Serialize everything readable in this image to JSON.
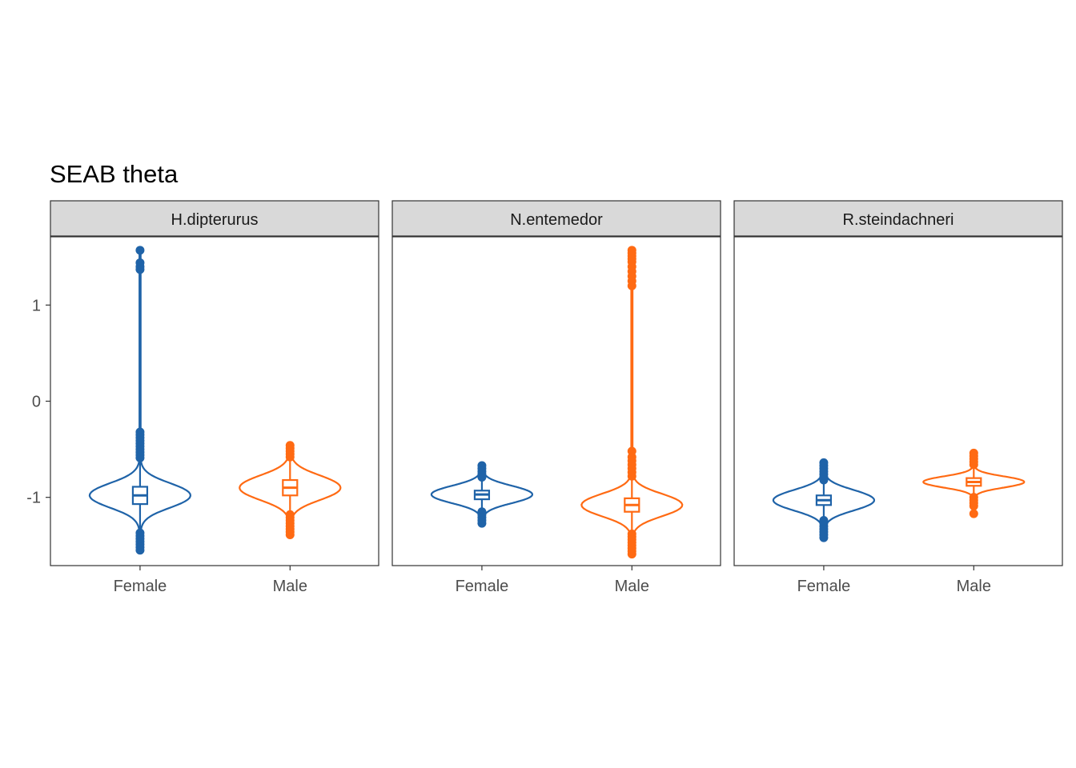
{
  "chart_data": {
    "type": "violin",
    "title": "SEAB theta",
    "xlabel": "",
    "ylabel": "",
    "ylim": [
      -1.71,
      1.71
    ],
    "y_ticks": [
      1,
      0,
      -1
    ],
    "y_tick_labels": [
      "1",
      "0",
      "-1"
    ],
    "categories": [
      "Female",
      "Male"
    ],
    "colors": {
      "Female": "#1f63a8",
      "Male": "#ff6a13"
    },
    "grid": false,
    "legend": "none",
    "panels": [
      {
        "label": "H.dipterurus",
        "groups": [
          {
            "name": "Female",
            "median": -0.98,
            "q1": -1.07,
            "q3": -0.89,
            "whisker_low": -1.34,
            "whisker_high": -0.62,
            "min": -1.55,
            "max": 1.57,
            "sd": 0.12,
            "outliers": [
              1.57,
              1.44,
              1.4,
              1.37,
              -0.32,
              -0.35,
              -0.38,
              -0.41,
              -0.44,
              -0.47,
              -0.5,
              -0.53,
              -0.56,
              -0.59,
              -1.37,
              -1.4,
              -1.43,
              -1.46,
              -1.49,
              -1.52,
              -1.55
            ]
          },
          {
            "name": "Male",
            "median": -0.9,
            "q1": -0.98,
            "q3": -0.82,
            "whisker_low": -1.15,
            "whisker_high": -0.6,
            "min": -1.39,
            "max": -0.46,
            "sd": 0.12,
            "outliers": [
              -0.46,
              -0.49,
              -0.52,
              -0.55,
              -0.58,
              -1.18,
              -1.21,
              -1.24,
              -1.27,
              -1.3,
              -1.33,
              -1.36,
              -1.39
            ]
          }
        ]
      },
      {
        "label": "N.entemedor",
        "groups": [
          {
            "name": "Female",
            "median": -0.97,
            "q1": -1.02,
            "q3": -0.93,
            "whisker_low": -1.13,
            "whisker_high": -0.8,
            "min": -1.27,
            "max": -0.67,
            "sd": 0.085,
            "outliers": [
              -0.67,
              -0.7,
              -0.73,
              -0.76,
              -0.79,
              -1.15,
              -1.18,
              -1.21,
              -1.24,
              -1.27
            ]
          },
          {
            "name": "Male",
            "median": -1.08,
            "q1": -1.15,
            "q3": -1.01,
            "whisker_low": -1.35,
            "whisker_high": -0.8,
            "min": -1.59,
            "max": 1.57,
            "sd": 0.11,
            "outliers": [
              1.57,
              1.54,
              1.51,
              1.48,
              1.45,
              1.4,
              1.35,
              1.3,
              1.25,
              1.2,
              -0.52,
              -0.58,
              -0.62,
              -0.66,
              -0.7,
              -0.74,
              -0.78,
              -1.38,
              -1.41,
              -1.44,
              -1.47,
              -1.5,
              -1.53,
              -1.56,
              -1.59
            ]
          }
        ]
      },
      {
        "label": "R.steindachneri",
        "groups": [
          {
            "name": "Female",
            "median": -1.03,
            "q1": -1.08,
            "q3": -0.98,
            "whisker_low": -1.2,
            "whisker_high": -0.85,
            "min": -1.42,
            "max": -0.64,
            "sd": 0.1,
            "outliers": [
              -0.64,
              -0.67,
              -0.7,
              -0.73,
              -0.76,
              -0.79,
              -0.82,
              -1.24,
              -1.27,
              -1.3,
              -1.33,
              -1.36,
              -1.39,
              -1.42
            ]
          },
          {
            "name": "Male",
            "median": -0.84,
            "q1": -0.88,
            "q3": -0.8,
            "whisker_low": -0.98,
            "whisker_high": -0.7,
            "min": -1.17,
            "max": -0.54,
            "sd": 0.055,
            "outliers": [
              -0.54,
              -0.57,
              -0.6,
              -0.63,
              -0.66,
              -1.0,
              -1.03,
              -1.06,
              -1.09,
              -1.17
            ]
          }
        ]
      }
    ]
  }
}
